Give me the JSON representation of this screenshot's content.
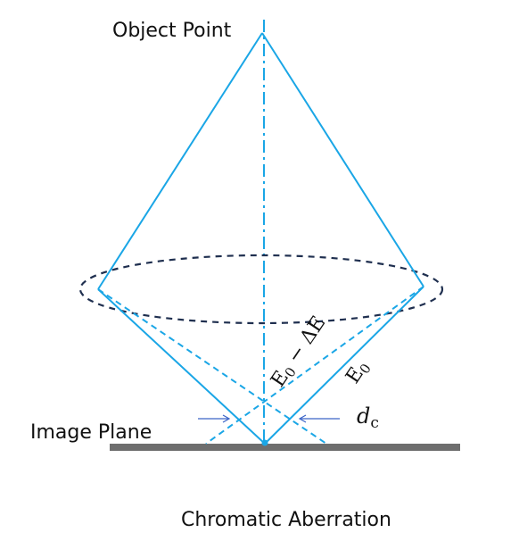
{
  "labels": {
    "object_point": "Object Point",
    "image_plane": "Image Plane",
    "caption": "Chromatic Aberration",
    "energy_shifted_main": "E",
    "energy_shifted_sub": "0",
    "energy_shifted_tail": " − ΔE",
    "energy_main": "E",
    "energy_sub": "0",
    "disc_main": "d",
    "disc_sub": "c"
  },
  "colors": {
    "ray": "#1aa6e6",
    "lens_outline": "#1f2f4f",
    "image_plane": "#6e6e6e",
    "arrow": "#3a63c8",
    "text": "#111111"
  },
  "icons": {
    "left_arrow": "right-pointing-arrow",
    "right_arrow": "left-pointing-arrow"
  }
}
